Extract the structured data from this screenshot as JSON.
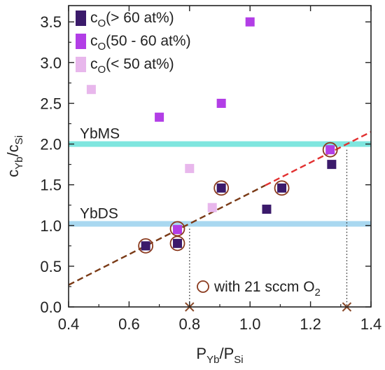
{
  "chart_data": {
    "type": "scatter",
    "xlabel": {
      "main": "P",
      "sub1": "Yb",
      "mid": "/P",
      "sub2": "Si"
    },
    "ylabel": {
      "main": "c",
      "sub1": "Yb",
      "mid": "/c",
      "sub2": "Si"
    },
    "xlim": [
      0.4,
      1.4
    ],
    "ylim": [
      0.0,
      3.7
    ],
    "x_ticks": [
      "0.4",
      "0.6",
      "0.8",
      "1.0",
      "1.2",
      "1.4"
    ],
    "y_ticks": [
      "0.0",
      "0.5",
      "1.0",
      "1.5",
      "2.0",
      "2.5",
      "3.0",
      "3.5"
    ],
    "grid": false,
    "legend_position": "top-left",
    "series": [
      {
        "name": "c_O(> 60 at%)",
        "label": {
          "main": "c",
          "sub": "O",
          "rest": "(> 60 at%)"
        },
        "color": "#3b1a6b",
        "points": [
          [
            0.655,
            0.75
          ],
          [
            0.76,
            0.78
          ],
          [
            0.905,
            1.46
          ],
          [
            1.055,
            1.2
          ],
          [
            1.105,
            1.46
          ],
          [
            1.27,
            1.75
          ]
        ]
      },
      {
        "name": "c_O(50 - 60 at%)",
        "label": {
          "main": "c",
          "sub": "O",
          "rest": "(50 - 60 at%)"
        },
        "color": "#b23ee6",
        "points": [
          [
            0.7,
            2.33
          ],
          [
            0.905,
            2.5
          ],
          [
            1.0,
            3.5
          ],
          [
            0.76,
            0.95
          ],
          [
            1.265,
            1.93
          ]
        ]
      },
      {
        "name": "c_O(< 50 at%)",
        "label": {
          "main": "c",
          "sub": "O",
          "rest": "(< 50 at%)"
        },
        "color": "#e8b7ec",
        "points": [
          [
            0.475,
            2.67
          ],
          [
            0.8,
            1.7
          ],
          [
            0.875,
            1.22
          ]
        ]
      }
    ],
    "circled_points": [
      [
        0.655,
        0.75
      ],
      [
        0.76,
        0.78
      ],
      [
        0.76,
        0.96
      ],
      [
        0.905,
        1.46
      ],
      [
        1.105,
        1.46
      ],
      [
        1.265,
        1.93
      ]
    ],
    "circle_note": {
      "text": "with 21 sccm O",
      "sub": "2"
    },
    "hbands": [
      {
        "label": "YbMS",
        "y": 2.0,
        "color": "#7fe6df"
      },
      {
        "label": "YbDS",
        "y": 1.02,
        "color": "#a9d8f0"
      }
    ],
    "fit_line": {
      "x": [
        0.4,
        1.4
      ],
      "y": [
        0.27,
        2.15
      ],
      "color_left": "#7a3a16",
      "color_right": "#e23030",
      "change_x": 1.05
    },
    "x_intercepts": [
      0.8,
      1.32
    ],
    "x_intercept_drop_from": [
      0.96,
      1.93
    ]
  }
}
